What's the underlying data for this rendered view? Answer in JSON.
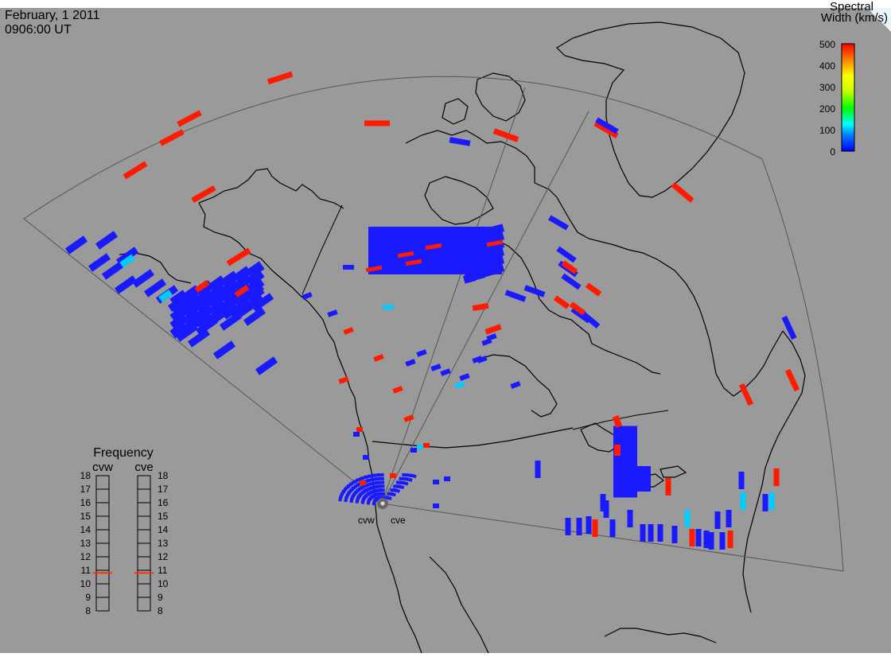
{
  "header": {
    "date": "February, 1 2011",
    "time": "0906:00 UT"
  },
  "colorbar": {
    "title_line1": "Spectral",
    "title_line2": "Width (km/s)",
    "ticks": [
      "500",
      "400",
      "300",
      "200",
      "100",
      "0"
    ]
  },
  "frequency_panel": {
    "title": "Frequency",
    "radars": [
      "cvw",
      "cve"
    ],
    "ticks": [
      "18",
      "17",
      "16",
      "15",
      "14",
      "13",
      "12",
      "11",
      "10",
      "9",
      "8"
    ],
    "selected_mhz": [
      10.8,
      10.8
    ]
  },
  "radar_labels": [
    "cvw",
    "cve"
  ],
  "colors": {
    "background": "#9a9a9a",
    "coast": "#000000",
    "fov": "#555555",
    "low_width": "#1a1aff",
    "high_width": "#ff1a00",
    "mid_width": "#00ccff"
  }
}
